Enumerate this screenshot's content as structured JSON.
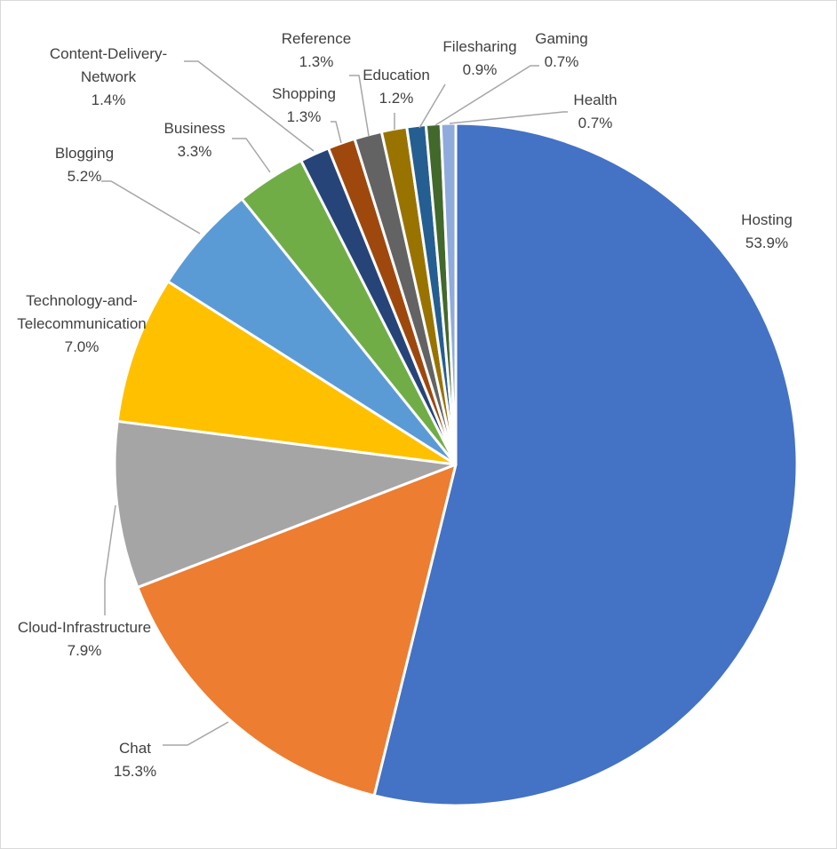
{
  "chart_data": {
    "type": "pie",
    "title": "",
    "start_angle_deg": 0,
    "direction": "clockwise",
    "legend": "none",
    "data_labels": "category-name-and-percent",
    "slices": [
      {
        "label": "Hosting",
        "value": 53.9,
        "display": "53.9%",
        "color": "#4472C4"
      },
      {
        "label": "Chat",
        "value": 15.3,
        "display": "15.3%",
        "color": "#ED7D31"
      },
      {
        "label": "Cloud-Infrastructure",
        "value": 7.9,
        "display": "7.9%",
        "color": "#A5A5A5"
      },
      {
        "label": "Technology-and-Telecommunication",
        "label_lines": [
          "Technology-and-",
          "Telecommunication"
        ],
        "value": 7.0,
        "display": "7.0%",
        "color": "#FFC000"
      },
      {
        "label": "Blogging",
        "value": 5.2,
        "display": "5.2%",
        "color": "#5B9BD5"
      },
      {
        "label": "Business",
        "value": 3.3,
        "display": "3.3%",
        "color": "#70AD47"
      },
      {
        "label": "Content-Delivery-Network",
        "label_lines": [
          "Content-Delivery-",
          "Network"
        ],
        "value": 1.4,
        "display": "1.4%",
        "color": "#264478"
      },
      {
        "label": "Shopping",
        "value": 1.3,
        "display": "1.3%",
        "color": "#9E480E"
      },
      {
        "label": "Reference",
        "value": 1.3,
        "display": "1.3%",
        "color": "#636363"
      },
      {
        "label": "Education",
        "value": 1.2,
        "display": "1.2%",
        "color": "#997300"
      },
      {
        "label": "Filesharing",
        "value": 0.9,
        "display": "0.9%",
        "color": "#255E91"
      },
      {
        "label": "Gaming",
        "value": 0.7,
        "display": "0.7%",
        "color": "#43682B"
      },
      {
        "label": "Health",
        "value": 0.7,
        "display": "0.7%",
        "color": "#8FAADC"
      }
    ]
  }
}
